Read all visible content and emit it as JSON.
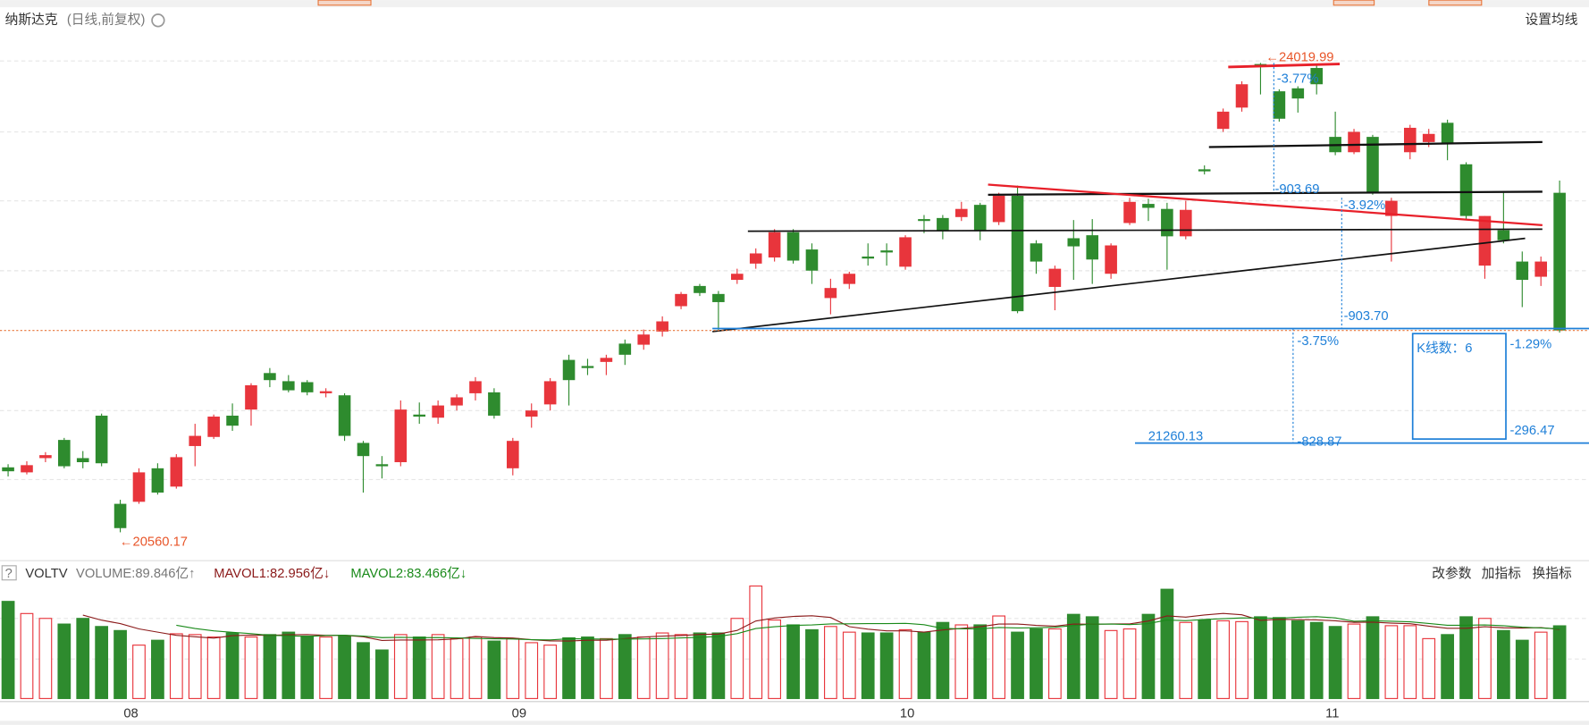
{
  "header": {
    "title": "纳斯达克",
    "subtitle": "(日线,前复权)",
    "setting": "设置均线"
  },
  "chart_data": {
    "type": "candlestick",
    "ohlc": [
      [
        21039,
        21062,
        20972,
        21010
      ],
      [
        21002,
        21084,
        20987,
        21055
      ],
      [
        21107,
        21151,
        21077,
        21129
      ],
      [
        21241,
        21256,
        21032,
        21047
      ],
      [
        21107,
        21159,
        21032,
        21077
      ],
      [
        21420,
        21435,
        21047,
        21069
      ],
      [
        20770,
        20800,
        20560.17,
        20591
      ],
      [
        20785,
        21032,
        20770,
        21002
      ],
      [
        21032,
        21069,
        20838,
        20853
      ],
      [
        20897,
        21136,
        20882,
        21114
      ],
      [
        21196,
        21360,
        21047,
        21271
      ],
      [
        21263,
        21428,
        21248,
        21413
      ],
      [
        21420,
        21510,
        21308,
        21346
      ],
      [
        21465,
        21659,
        21346,
        21644
      ],
      [
        21734,
        21771,
        21630,
        21682
      ],
      [
        21674,
        21719,
        21592,
        21607
      ],
      [
        21667,
        21682,
        21570,
        21592
      ],
      [
        21585,
        21622,
        21555,
        21600
      ],
      [
        21570,
        21585,
        21234,
        21271
      ],
      [
        21219,
        21234,
        20853,
        21122
      ],
      [
        21062,
        21122,
        20957,
        21047
      ],
      [
        21077,
        21532,
        21047,
        21465
      ],
      [
        21428,
        21517,
        21360,
        21413
      ],
      [
        21405,
        21532,
        21360,
        21495
      ],
      [
        21495,
        21577,
        21458,
        21555
      ],
      [
        21585,
        21704,
        21532,
        21674
      ],
      [
        21592,
        21622,
        21398,
        21420
      ],
      [
        21032,
        21256,
        20980,
        21234
      ],
      [
        21413,
        21510,
        21331,
        21458
      ],
      [
        21503,
        21697,
        21458,
        21674
      ],
      [
        21831,
        21869,
        21495,
        21682
      ],
      [
        21786,
        21839,
        21719,
        21771
      ],
      [
        21816,
        21869,
        21719,
        21846
      ],
      [
        21951,
        21981,
        21794,
        21869
      ],
      [
        21943,
        22055,
        21906,
        22018
      ],
      [
        22040,
        22152,
        22003,
        22115
      ],
      [
        22227,
        22332,
        22205,
        22317
      ],
      [
        22376,
        22391,
        22302,
        22324
      ],
      [
        22317,
        22339,
        22040,
        22257
      ],
      [
        22421,
        22503,
        22391,
        22466
      ],
      [
        22541,
        22653,
        22503,
        22616
      ],
      [
        22586,
        22795,
        22556,
        22772
      ],
      [
        22772,
        22795,
        22541,
        22563
      ],
      [
        22645,
        22690,
        22391,
        22489
      ],
      [
        22287,
        22429,
        22167,
        22361
      ],
      [
        22391,
        22481,
        22354,
        22466
      ],
      [
        22593,
        22690,
        22526,
        22578
      ],
      [
        22638,
        22690,
        22526,
        22623
      ],
      [
        22518,
        22750,
        22496,
        22735
      ],
      [
        22869,
        22899,
        22765,
        22855
      ],
      [
        22877,
        22899,
        22720,
        22780
      ],
      [
        22884,
        22996,
        22855,
        22944
      ],
      [
        22974,
        22989,
        22713,
        22780
      ],
      [
        22847,
        23063,
        22825,
        23041
      ],
      [
        23041,
        23116,
        22175,
        22190
      ],
      [
        22690,
        22713,
        22466,
        22556
      ],
      [
        22369,
        22526,
        22197,
        22503
      ],
      [
        22728,
        22862,
        22421,
        22668
      ],
      [
        22750,
        22869,
        22391,
        22571
      ],
      [
        22466,
        22690,
        22429,
        22675
      ],
      [
        22840,
        23026,
        22825,
        22996
      ],
      [
        22981,
        23019,
        22855,
        22952
      ],
      [
        22944,
        22989,
        22496,
        22742
      ],
      [
        22742,
        23004,
        22720,
        22937
      ],
      [
        23236,
        23265,
        23198,
        23221
      ],
      [
        23534,
        23684,
        23512,
        23661
      ],
      [
        23691,
        23885,
        23661,
        23863
      ],
      [
        24012,
        24019.99,
        23788,
        23997
      ],
      [
        23811,
        23826,
        23587,
        23609
      ],
      [
        23833,
        23848,
        23654,
        23758
      ],
      [
        23983,
        24012,
        23788,
        23863
      ],
      [
        23475,
        23661,
        23340,
        23362
      ],
      [
        23362,
        23534,
        23348,
        23512
      ],
      [
        23475,
        23490,
        23049,
        23063
      ],
      [
        22892,
        23026,
        22556,
        23004
      ],
      [
        23362,
        23564,
        23310,
        23542
      ],
      [
        23437,
        23534,
        23400,
        23497
      ],
      [
        23579,
        23602,
        23303,
        23430
      ],
      [
        23273,
        23288,
        22862,
        22892
      ],
      [
        22526,
        22892,
        22429,
        22892
      ],
      [
        22787,
        23063,
        22690,
        22713
      ],
      [
        22556,
        22630,
        22220,
        22421
      ],
      [
        22444,
        22593,
        22376,
        22556
      ],
      [
        23063,
        23153,
        22033,
        22048
      ]
    ],
    "volume": [
      120,
      105,
      99,
      92,
      99,
      89,
      84,
      66,
      72,
      80,
      79,
      76,
      81,
      76,
      79,
      82,
      77,
      76,
      77,
      69,
      60,
      79,
      76,
      79,
      74,
      76,
      71,
      74,
      69,
      66,
      75,
      76,
      74,
      79,
      76,
      81,
      79,
      81,
      81,
      99,
      139,
      97,
      91,
      85,
      89,
      82,
      81,
      81,
      85,
      82,
      94,
      91,
      91,
      102,
      82,
      86,
      86,
      104,
      101,
      84,
      86,
      104,
      135,
      94,
      97,
      96,
      95,
      101,
      100,
      96,
      94,
      89,
      92,
      101,
      90,
      90,
      74,
      79,
      101,
      99,
      84,
      72,
      82,
      89.846
    ],
    "up_color": "#e8353c",
    "down_color": "#2e8b2e",
    "x_labels": [
      "08",
      "09",
      "10",
      "11"
    ],
    "annotations": [
      "←24019.99",
      "-3.77%",
      "-903.69",
      "-3.92%",
      "-903.70",
      "-3.75%",
      "-1.29%",
      "K线数：6",
      "-296.47",
      "21260.13",
      "-828.87",
      "←20560.17"
    ],
    "volume_panel": {
      "name": "VOLTV",
      "volume": "VOLUME:89.846亿↑",
      "mavol1": "MAVOL1:82.956亿↓",
      "mavol2": "MAVOL2:83.466亿↓",
      "buttons": [
        "改参数",
        "加指标",
        "换指标"
      ]
    }
  }
}
